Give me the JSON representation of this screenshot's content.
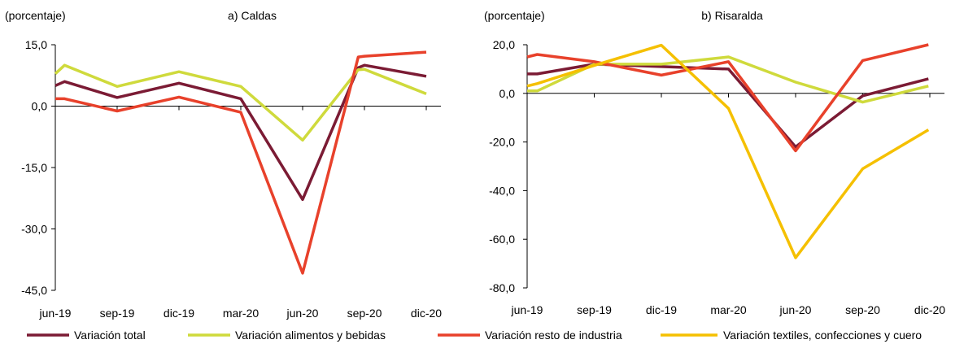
{
  "chart_data": [
    {
      "type": "line",
      "title": "a) Caldas",
      "unit_label": "(porcentaje)",
      "categories": [
        "jun-19",
        "sep-19",
        "dic-19",
        "mar-20",
        "jun-20",
        "sep-20",
        "dic-20"
      ],
      "ylim": [
        -45,
        15
      ],
      "yticks": [
        15,
        0,
        -15,
        -30,
        -45
      ],
      "ytick_labels": [
        "15,0",
        "0,0",
        "-15,0",
        "-30,0",
        "-45,0"
      ],
      "x": [
        0.0,
        0.15,
        1.0,
        2.0,
        3.0,
        4.0,
        4.9,
        5.0,
        6.0,
        6.6
      ],
      "series": [
        {
          "name": "Variación total",
          "color": "#7B1B34",
          "values": [
            5.0,
            6.0,
            2.1,
            5.6,
            1.8,
            -22.8,
            9.4,
            10.0,
            7.3,
            null
          ]
        },
        {
          "name": "Variación alimentos y bebidas",
          "color": "#CFDA3C",
          "values": [
            7.9,
            10.0,
            4.8,
            8.4,
            4.8,
            -8.3,
            8.9,
            9.0,
            3.0,
            null
          ]
        },
        {
          "name": "Variación resto de industria",
          "color": "#E8412B",
          "values": [
            1.8,
            1.8,
            -1.2,
            2.2,
            -1.5,
            -40.8,
            12.0,
            12.2,
            13.2,
            null
          ]
        }
      ]
    },
    {
      "type": "line",
      "title": "b) Risaralda",
      "unit_label": "(porcentaje)",
      "categories": [
        "jun-19",
        "sep-19",
        "dic-19",
        "mar-20",
        "jun-20",
        "sep-20",
        "dic-20"
      ],
      "ylim": [
        -80,
        20
      ],
      "yticks": [
        20,
        0,
        -20,
        -40,
        -60,
        -80
      ],
      "ytick_labels": [
        "20,0",
        "0,0",
        "-20,0",
        "-40,0",
        "-60,0",
        "-80,0"
      ],
      "x": [
        0.0,
        0.15,
        1.0,
        2.0,
        3.0,
        4.0,
        5.0,
        5.98
      ],
      "series": [
        {
          "name": "Variación total",
          "color": "#7B1B34",
          "values": [
            8.0,
            8.0,
            12.0,
            11.0,
            10.0,
            -22.0,
            -1.0,
            6.0
          ]
        },
        {
          "name": "Variación alimentos y bebidas",
          "color": "#CFDA3C",
          "values": [
            1.0,
            1.0,
            12.0,
            12.0,
            15.0,
            4.6,
            -3.6,
            3.0
          ]
        },
        {
          "name": "Variación resto de industria",
          "color": "#E8412B",
          "values": [
            15.0,
            16.0,
            13.0,
            7.5,
            13.0,
            -23.6,
            13.5,
            20.0
          ]
        },
        {
          "name": "Variación textiles, confecciones y cuero",
          "color": "#F5C000",
          "values": [
            3.0,
            4.0,
            11.5,
            19.8,
            -6.2,
            -67.6,
            -31.0,
            -15.0
          ]
        }
      ]
    }
  ],
  "legend": [
    {
      "label": "Variación total",
      "color": "#7B1B34"
    },
    {
      "label": "Variación alimentos y bebidas",
      "color": "#CFDA3C"
    },
    {
      "label": "Variación resto de industria",
      "color": "#E8412B"
    },
    {
      "label": "Variación textiles, confecciones y cuero",
      "color": "#F5C000"
    }
  ]
}
